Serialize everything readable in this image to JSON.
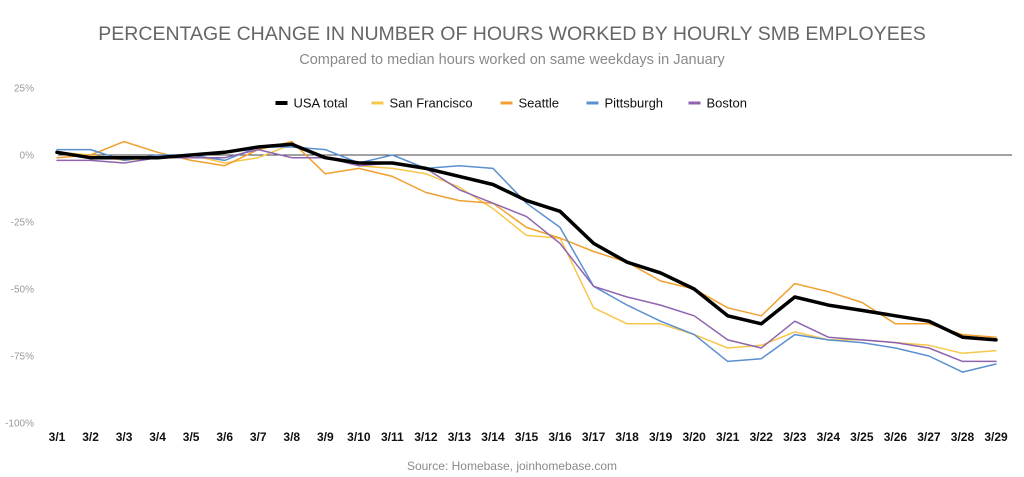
{
  "chart_data": {
    "type": "line",
    "title": "PERCENTAGE CHANGE IN NUMBER OF HOURS WORKED BY HOURLY SMB EMPLOYEES",
    "subtitle": "Compared to median hours worked on same weekdays in January",
    "source": "Source: Homebase, joinhomebase.com",
    "legend_position": "top",
    "grid": false,
    "ylim": [
      -100,
      25
    ],
    "yticks": [
      25,
      0,
      -25,
      -50,
      -75,
      -100
    ],
    "ytick_labels": [
      "25%",
      "0%",
      "-25%",
      "-50%",
      "-75%",
      "-100%"
    ],
    "categories": [
      "3/1",
      "3/2",
      "3/3",
      "3/4",
      "3/5",
      "3/6",
      "3/7",
      "3/8",
      "3/9",
      "3/10",
      "3/11",
      "3/12",
      "3/13",
      "3/14",
      "3/15",
      "3/16",
      "3/17",
      "3/18",
      "3/19",
      "3/20",
      "3/21",
      "3/22",
      "3/23",
      "3/24",
      "3/25",
      "3/26",
      "3/27",
      "3/28",
      "3/29"
    ],
    "series": [
      {
        "name": "San Francisco",
        "color": "#f6c74b",
        "width": 1.5,
        "values": [
          1,
          0,
          -2,
          -1,
          0,
          -3,
          -1,
          4,
          -1,
          -4,
          -5,
          -7,
          -12,
          -20,
          -30,
          -31,
          -57,
          -63,
          -63,
          -67,
          -72,
          -71,
          -66,
          -69,
          -69,
          -70,
          -71,
          -74,
          -73
        ]
      },
      {
        "name": "Seattle",
        "color": "#f0a030",
        "width": 1.5,
        "values": [
          -1,
          0,
          5,
          1,
          -2,
          -4,
          2,
          5,
          -7,
          -5,
          -8,
          -14,
          -17,
          -18,
          -27,
          -31,
          -36,
          -40,
          -47,
          -50,
          -57,
          -60,
          -48,
          -51,
          -55,
          -63,
          -63,
          -67,
          -68
        ]
      },
      {
        "name": "Pittsburgh",
        "color": "#5b8fd0",
        "width": 1.5,
        "values": [
          2,
          2,
          -2,
          0,
          0,
          -2,
          3,
          3,
          2,
          -3,
          0,
          -5,
          -4,
          -5,
          -18,
          -27,
          -49,
          -56,
          -62,
          -67,
          -77,
          -76,
          -67,
          -69,
          -70,
          -72,
          -75,
          -81,
          -78
        ]
      },
      {
        "name": "Boston",
        "color": "#8e64b0",
        "width": 1.5,
        "values": [
          -2,
          -2,
          -3,
          -1,
          -1,
          -1,
          2,
          -1,
          -1,
          -4,
          -3,
          -5,
          -13,
          -18,
          -23,
          -33,
          -49,
          -53,
          -56,
          -60,
          -69,
          -72,
          -62,
          -68,
          -69,
          -70,
          -72,
          -77,
          -77
        ]
      },
      {
        "name": "USA total",
        "color": "#000000",
        "width": 3.5,
        "values": [
          1,
          -1,
          -1,
          -1,
          0,
          1,
          3,
          4,
          -1,
          -3,
          -3,
          -5,
          -8,
          -11,
          -17,
          -21,
          -33,
          -40,
          -44,
          -50,
          -60,
          -63,
          -53,
          -56,
          -58,
          -60,
          -62,
          -68,
          -69
        ]
      }
    ],
    "legend_order": [
      "USA total",
      "San Francisco",
      "Seattle",
      "Pittsburgh",
      "Boston"
    ]
  }
}
